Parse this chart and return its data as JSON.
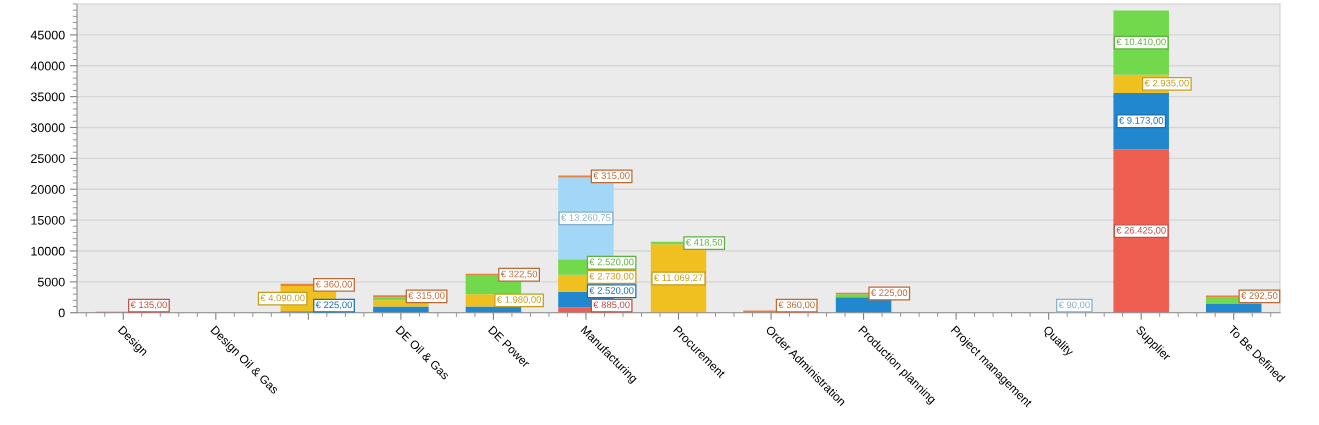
{
  "chart_data": {
    "type": "bar",
    "stacked": true,
    "categories": [
      "Design",
      "Design Oil & Gas",
      null,
      "DE Oil & Gas",
      "DE Power",
      "Manufacturing",
      "Procurement",
      "Order Administration",
      "Production planning",
      "Project management",
      "Quality",
      "Supplier",
      "To Be Defined"
    ],
    "ylim": [
      0,
      50000
    ],
    "yticks": [
      0,
      5000,
      10000,
      15000,
      20000,
      25000,
      30000,
      35000,
      40000,
      45000
    ],
    "grid": "y",
    "series": [
      {
        "color": "#ee5f52",
        "values": [
          135,
          null,
          null,
          null,
          null,
          885,
          null,
          null,
          null,
          null,
          null,
          26425,
          null
        ],
        "value_labels": [
          "€ 135,00",
          null,
          null,
          null,
          null,
          "€ 885,00",
          null,
          null,
          null,
          null,
          null,
          "€ 26.425,00",
          null
        ]
      },
      {
        "color": "#2188d0",
        "values": [
          null,
          null,
          225,
          1000,
          1000,
          2520,
          null,
          null,
          2500,
          null,
          null,
          9173,
          1500
        ],
        "value_labels": [
          null,
          null,
          "€ 225,00",
          null,
          null,
          "€ 2.520,00",
          null,
          null,
          null,
          null,
          null,
          "€ 9.173,00",
          null
        ]
      },
      {
        "color": "#f0c020",
        "values": [
          null,
          null,
          4090,
          1000,
          1980,
          2730,
          11069.27,
          null,
          null,
          null,
          null,
          2935,
          null
        ],
        "value_labels": [
          null,
          null,
          "€ 4.090,00",
          null,
          "€ 1.980,00",
          "€ 2.730,00",
          "€ 11.069,27",
          null,
          null,
          null,
          null,
          "€ 2.935,00",
          null
        ]
      },
      {
        "color": "#72d84c",
        "values": [
          null,
          null,
          null,
          500,
          3000,
          2520,
          418.5,
          null,
          500,
          null,
          null,
          10410,
          1000
        ],
        "value_labels": [
          null,
          null,
          null,
          null,
          null,
          "€ 2.520,00",
          "€ 418,50",
          null,
          null,
          null,
          null,
          "€ 10.410,00",
          null
        ]
      },
      {
        "color": "#a2d7f7",
        "values": [
          null,
          null,
          null,
          null,
          null,
          13260.75,
          null,
          null,
          null,
          null,
          90,
          null,
          null
        ],
        "value_labels": [
          null,
          null,
          null,
          null,
          null,
          "€ 13.260,75",
          null,
          null,
          null,
          null,
          "€ 90,00",
          null,
          null
        ]
      },
      {
        "color": "#e8803f",
        "values": [
          null,
          null,
          360,
          315,
          322.5,
          315,
          null,
          360,
          225,
          null,
          null,
          null,
          292.5
        ],
        "value_labels": [
          null,
          null,
          "€ 360,00",
          "€ 315,00",
          "€ 322,50",
          "€ 315,00",
          null,
          "€ 360,00",
          "€ 225,00",
          null,
          null,
          null,
          "€ 292,50"
        ]
      }
    ]
  }
}
